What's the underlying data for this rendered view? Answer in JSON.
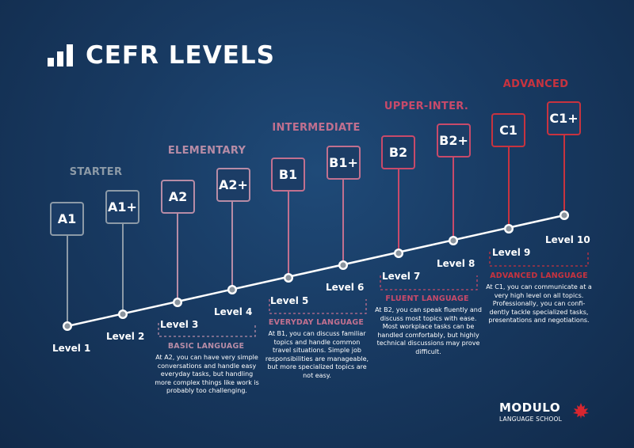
{
  "title": "CEFR LEVELS",
  "colors": {
    "starter": "#8c9aa7",
    "elementary": "#b78ca6",
    "intermediate": "#c1708f",
    "upper": "#c84a6a",
    "advanced": "#c8333f",
    "dark_box": "#1c3d66"
  },
  "categories": {
    "starter": "STARTER",
    "elementary": "ELEMENTARY",
    "intermediate": "INTERMEDIATE",
    "upper": "UPPER-INTER.",
    "advanced": "ADVANCED"
  },
  "codes": {
    "a1": "A1",
    "a1p": "A1+",
    "a2": "A2",
    "a2p": "A2+",
    "b1": "B1",
    "b1p": "B1+",
    "b2": "B2",
    "b2p": "B2+",
    "c1": "C1",
    "c1p": "C1+"
  },
  "levels": {
    "l1": "Level 1",
    "l2": "Level 2",
    "l3": "Level 3",
    "l4": "Level 4",
    "l5": "Level 5",
    "l6": "Level 6",
    "l7": "Level 7",
    "l8": "Level 8",
    "l9": "Level 9",
    "l10": "Level 10"
  },
  "descriptions": {
    "basic": {
      "title": "BASIC LANGUAGE",
      "lines": [
        "At A2, you can have very simple",
        "conversations and handle easy",
        "everyday tasks, but handling",
        "more complex things like work is",
        "probably too challenging."
      ]
    },
    "everyday": {
      "title": "EVERYDAY LANGUAGE",
      "lines": [
        "At B1, you can discuss familiar",
        "topics and handle common",
        "travel situations. Simple job",
        "responsibilities are manageable,",
        "but more specialized topics are",
        "not easy."
      ]
    },
    "fluent": {
      "title": "FLUENT LANGUAGE",
      "lines": [
        "At B2, you can speak fluently and",
        "discuss most topics with ease.",
        "Most workplace tasks can be",
        "handled comfortably, but highly",
        "technical discussions may prove",
        "difficult."
      ]
    },
    "advanced": {
      "title": "ADVANCED LANGUAGE",
      "lines": [
        "At C1, you can communicate at a",
        "very high level on all topics.",
        "Professionally, you can confi-",
        "dently tackle specialized tasks,",
        "presentations and negotiations."
      ]
    }
  },
  "brand": {
    "name": "MODULO",
    "sub": "LANGUAGE SCHOOL"
  }
}
